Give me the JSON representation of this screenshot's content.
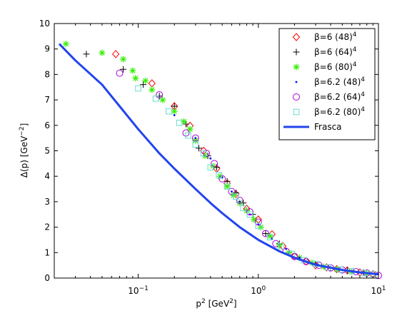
{
  "chart_data": {
    "type": "scatter",
    "xlabel": {
      "base": "p",
      "sup": "2",
      "unit_pre": " [GeV",
      "unit_sup": "2",
      "unit_post": "]"
    },
    "ylabel": {
      "pre": "Δ(p) [GeV",
      "sup": "−2",
      "post": "]"
    },
    "xscale": "log",
    "xlim": [
      0.02,
      10
    ],
    "ylim": [
      0,
      10
    ],
    "xticks": [
      {
        "value": 0.1,
        "base": "10",
        "exp": "−1"
      },
      {
        "value": 1,
        "base": "10",
        "exp": "0"
      },
      {
        "value": 10,
        "base": "10",
        "exp": "1"
      }
    ],
    "yticks": [
      "0",
      "1",
      "2",
      "3",
      "4",
      "5",
      "6",
      "7",
      "8",
      "9",
      "10"
    ],
    "grid": false,
    "legend_position": "top-right",
    "series": [
      {
        "name": {
          "main": "β=6   (48)",
          "sup": "4"
        },
        "marker": "diamond",
        "color": "#ff0000",
        "points": [
          [
            0.065,
            8.8
          ],
          [
            0.13,
            7.65
          ],
          [
            0.2,
            6.75
          ],
          [
            0.27,
            5.98
          ],
          [
            0.35,
            5.0
          ],
          [
            0.45,
            4.3
          ],
          [
            0.55,
            3.72
          ],
          [
            0.65,
            3.3
          ],
          [
            0.8,
            2.72
          ],
          [
            1.0,
            2.3
          ],
          [
            1.3,
            1.72
          ],
          [
            1.6,
            1.25
          ],
          [
            2.0,
            0.85
          ],
          [
            2.5,
            0.65
          ],
          [
            3.0,
            0.5
          ],
          [
            3.7,
            0.42
          ],
          [
            4.5,
            0.35
          ],
          [
            5.5,
            0.3
          ],
          [
            7.0,
            0.22
          ],
          [
            9.0,
            0.15
          ]
        ]
      },
      {
        "name": {
          "main": "β=6   (64)",
          "sup": "4"
        },
        "marker": "plus",
        "color": "#000000",
        "points": [
          [
            0.037,
            8.8
          ],
          [
            0.075,
            8.2
          ],
          [
            0.11,
            7.6
          ],
          [
            0.15,
            7.15
          ],
          [
            0.2,
            6.75
          ],
          [
            0.25,
            6.05
          ],
          [
            0.32,
            5.1
          ],
          [
            0.38,
            4.8
          ],
          [
            0.45,
            4.35
          ],
          [
            0.55,
            3.8
          ],
          [
            0.65,
            3.35
          ],
          [
            0.75,
            2.95
          ],
          [
            0.9,
            2.5
          ],
          [
            1.15,
            1.75
          ],
          [
            1.5,
            1.35
          ],
          [
            1.8,
            1.0
          ],
          [
            2.2,
            0.8
          ],
          [
            3.0,
            0.55
          ],
          [
            4.0,
            0.4
          ],
          [
            5.5,
            0.3
          ],
          [
            7.5,
            0.22
          ],
          [
            9.5,
            0.15
          ]
        ]
      },
      {
        "name": {
          "main": "β=6   (80)",
          "sup": "4"
        },
        "marker": "asterisk",
        "color": "#33ee00",
        "points": [
          [
            0.025,
            9.2
          ],
          [
            0.05,
            8.85
          ],
          [
            0.075,
            8.6
          ],
          [
            0.09,
            8.15
          ],
          [
            0.095,
            7.85
          ],
          [
            0.115,
            7.75
          ],
          [
            0.13,
            7.4
          ],
          [
            0.16,
            7.0
          ],
          [
            0.2,
            6.55
          ],
          [
            0.24,
            6.15
          ],
          [
            0.27,
            5.85
          ],
          [
            0.3,
            5.4
          ],
          [
            0.36,
            4.8
          ],
          [
            0.42,
            4.4
          ],
          [
            0.48,
            4.0
          ],
          [
            0.55,
            3.6
          ],
          [
            0.62,
            3.25
          ],
          [
            0.7,
            2.95
          ],
          [
            0.8,
            2.65
          ],
          [
            0.92,
            2.3
          ],
          [
            1.05,
            2.0
          ],
          [
            1.25,
            1.65
          ],
          [
            1.5,
            1.3
          ],
          [
            1.8,
            1.0
          ],
          [
            2.2,
            0.8
          ],
          [
            2.8,
            0.6
          ],
          [
            3.5,
            0.45
          ],
          [
            4.5,
            0.35
          ],
          [
            6.0,
            0.25
          ],
          [
            8.0,
            0.18
          ]
        ]
      },
      {
        "name": {
          "main": "β=6.2 (48)",
          "sup": "4"
        },
        "marker": "dot",
        "color": "#0000ff",
        "points": [
          [
            0.2,
            6.4
          ],
          [
            0.3,
            5.5
          ],
          [
            0.4,
            4.7
          ],
          [
            0.5,
            3.95
          ],
          [
            0.6,
            3.4
          ],
          [
            0.7,
            3.0
          ],
          [
            0.85,
            2.5
          ],
          [
            1.0,
            2.1
          ],
          [
            1.3,
            1.55
          ],
          [
            1.7,
            1.15
          ],
          [
            2.2,
            0.8
          ],
          [
            3.0,
            0.55
          ],
          [
            4.0,
            0.4
          ],
          [
            5.5,
            0.28
          ],
          [
            7.5,
            0.2
          ],
          [
            9.5,
            0.14
          ]
        ]
      },
      {
        "name": {
          "main": "β=6.2 (64)",
          "sup": "4"
        },
        "marker": "circle",
        "color": "#aa00dd",
        "points": [
          [
            0.07,
            8.05
          ],
          [
            0.15,
            7.2
          ],
          [
            0.25,
            5.7
          ],
          [
            0.3,
            5.5
          ],
          [
            0.37,
            4.9
          ],
          [
            0.43,
            4.5
          ],
          [
            0.5,
            3.9
          ],
          [
            0.6,
            3.4
          ],
          [
            0.7,
            3.05
          ],
          [
            0.85,
            2.6
          ],
          [
            1.0,
            2.2
          ],
          [
            1.15,
            1.75
          ],
          [
            1.4,
            1.35
          ],
          [
            1.7,
            1.05
          ],
          [
            2.0,
            0.85
          ],
          [
            2.5,
            0.65
          ],
          [
            3.2,
            0.5
          ],
          [
            4.0,
            0.4
          ],
          [
            5.0,
            0.32
          ],
          [
            6.5,
            0.25
          ],
          [
            8.0,
            0.2
          ],
          [
            10.0,
            0.1
          ]
        ]
      },
      {
        "name": {
          "main": "β=6.2 (80)",
          "sup": "4"
        },
        "marker": "square",
        "color": "#66ddcc",
        "points": [
          [
            0.1,
            7.45
          ],
          [
            0.14,
            7.05
          ],
          [
            0.18,
            6.55
          ],
          [
            0.22,
            6.1
          ],
          [
            0.26,
            5.6
          ],
          [
            0.3,
            5.25
          ],
          [
            0.35,
            4.9
          ],
          [
            0.4,
            4.35
          ],
          [
            0.47,
            4.05
          ],
          [
            0.55,
            3.6
          ],
          [
            0.65,
            3.2
          ],
          [
            0.75,
            2.75
          ],
          [
            0.85,
            2.5
          ],
          [
            1.0,
            2.05
          ],
          [
            1.25,
            1.6
          ],
          [
            1.55,
            1.25
          ],
          [
            1.9,
            0.95
          ],
          [
            2.4,
            0.7
          ],
          [
            3.0,
            0.55
          ],
          [
            3.8,
            0.42
          ],
          [
            4.8,
            0.33
          ],
          [
            6.0,
            0.27
          ],
          [
            7.5,
            0.2
          ],
          [
            9.0,
            0.15
          ]
        ]
      },
      {
        "name": {
          "main": "Frasca",
          "sup": ""
        },
        "marker": "line",
        "color": "#2244ee",
        "points": [
          [
            0.022,
            9.2
          ],
          [
            0.03,
            8.55
          ],
          [
            0.05,
            7.6
          ],
          [
            0.07,
            6.75
          ],
          [
            0.1,
            5.85
          ],
          [
            0.15,
            4.9
          ],
          [
            0.2,
            4.3
          ],
          [
            0.3,
            3.5
          ],
          [
            0.4,
            2.95
          ],
          [
            0.5,
            2.55
          ],
          [
            0.7,
            2.0
          ],
          [
            1.0,
            1.5
          ],
          [
            1.5,
            1.05
          ],
          [
            2.0,
            0.8
          ],
          [
            3.0,
            0.52
          ],
          [
            5.0,
            0.32
          ],
          [
            7.0,
            0.22
          ],
          [
            10.0,
            0.15
          ]
        ]
      }
    ]
  }
}
